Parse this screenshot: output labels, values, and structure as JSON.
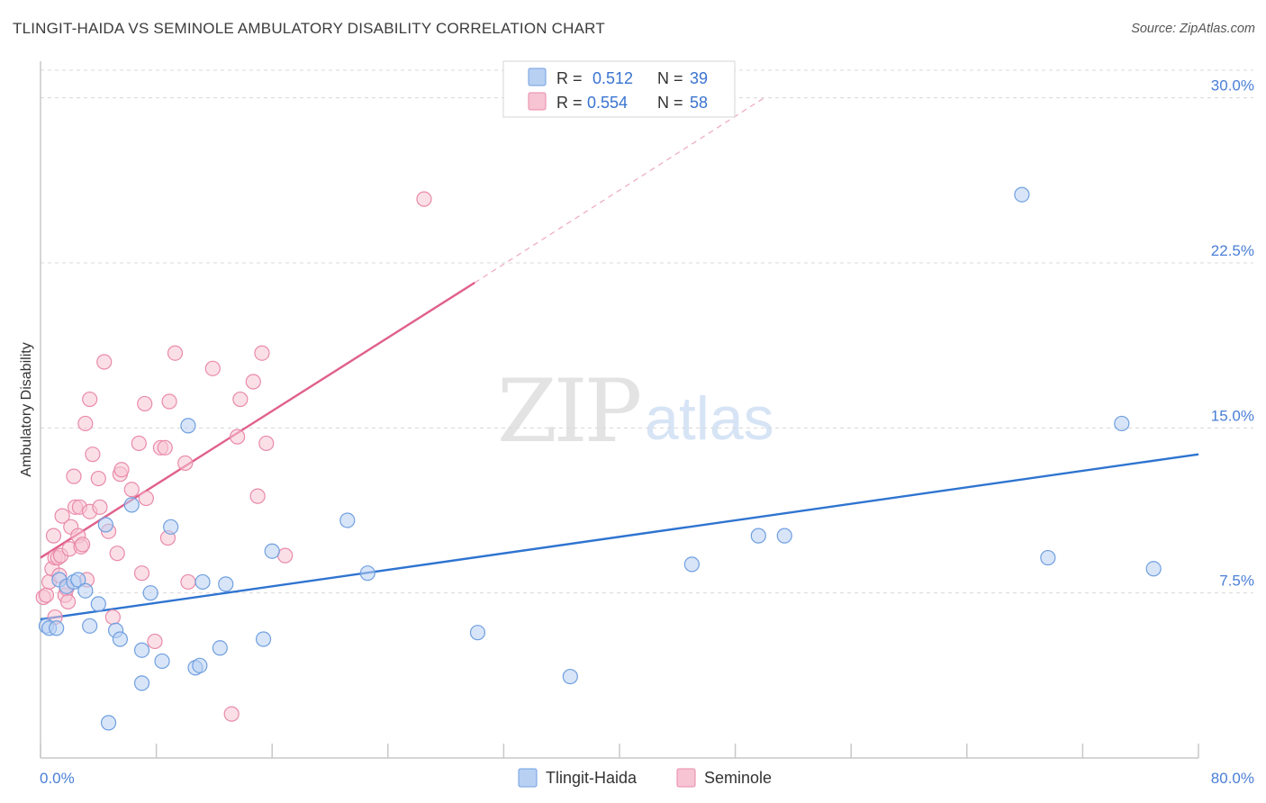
{
  "title": "TLINGIT-HAIDA VS SEMINOLE AMBULATORY DISABILITY CORRELATION CHART",
  "source": "Source: ZipAtlas.com",
  "watermark": {
    "zip": "ZIP",
    "atlas": "atlas"
  },
  "colors": {
    "tlingit_fill": "#b8d0f2",
    "tlingit_stroke": "#6f9fe0",
    "tlingit_line": "#2e74d0",
    "seminole_fill": "#f7c4d4",
    "seminole_stroke": "#e98aaa",
    "seminole_line": "#e0608a",
    "tick_text": "#4a7fd6",
    "grid": "#d8d8d8"
  },
  "legend": {
    "rows": [
      {
        "r_label": "R =",
        "r_value": "0.512",
        "n_label": "N =",
        "n_value": "39"
      },
      {
        "r_label": "R =",
        "r_value": "0.554",
        "n_label": "N =",
        "n_value": "58"
      }
    ]
  },
  "chart_data": {
    "type": "scatter",
    "title": "TLINGIT-HAIDA VS SEMINOLE AMBULATORY DISABILITY CORRELATION CHART",
    "xlabel": "",
    "ylabel": "Ambulatory Disability",
    "xlim": [
      0,
      80
    ],
    "ylim": [
      0,
      31.5
    ],
    "x_tick_labels": [
      "0.0%",
      "80.0%"
    ],
    "y_ticks": [
      7.5,
      15.0,
      22.5,
      30.0
    ],
    "y_tick_labels": [
      "7.5%",
      "15.0%",
      "22.5%",
      "30.0%"
    ],
    "grid": true,
    "legend_position": "top-center",
    "series": [
      {
        "name": "Tlingit-Haida",
        "r": 0.512,
        "n": 39,
        "trend": {
          "x0": 0,
          "y0": 6.3,
          "x1": 80,
          "y1": 13.8,
          "dashed_to": null
        },
        "points": [
          [
            0.4,
            6.0
          ],
          [
            0.6,
            5.9
          ],
          [
            1.1,
            5.9
          ],
          [
            1.3,
            8.1
          ],
          [
            1.8,
            7.8
          ],
          [
            2.3,
            8.0
          ],
          [
            2.6,
            8.1
          ],
          [
            3.1,
            7.6
          ],
          [
            3.4,
            6.0
          ],
          [
            4.0,
            7.0
          ],
          [
            4.5,
            10.6
          ],
          [
            4.7,
            1.6
          ],
          [
            5.2,
            5.8
          ],
          [
            5.5,
            5.4
          ],
          [
            6.3,
            11.5
          ],
          [
            7.0,
            4.9
          ],
          [
            7.0,
            3.4
          ],
          [
            7.6,
            7.5
          ],
          [
            8.4,
            4.4
          ],
          [
            9.0,
            10.5
          ],
          [
            10.2,
            15.1
          ],
          [
            10.7,
            4.1
          ],
          [
            11.0,
            4.2
          ],
          [
            11.2,
            8.0
          ],
          [
            12.4,
            5.0
          ],
          [
            12.8,
            7.9
          ],
          [
            15.4,
            5.4
          ],
          [
            16.0,
            9.4
          ],
          [
            21.2,
            10.8
          ],
          [
            22.6,
            8.4
          ],
          [
            30.2,
            5.7
          ],
          [
            36.6,
            3.7
          ],
          [
            45.0,
            8.8
          ],
          [
            49.6,
            10.1
          ],
          [
            51.4,
            10.1
          ],
          [
            67.8,
            25.6
          ],
          [
            69.6,
            9.1
          ],
          [
            74.7,
            15.2
          ],
          [
            76.9,
            8.6
          ]
        ]
      },
      {
        "name": "Seminole",
        "r": 0.554,
        "n": 58,
        "trend": {
          "x0": 0,
          "y0": 9.1,
          "x1": 30.0,
          "y1": 21.6,
          "dashed_to": {
            "x": 50.0,
            "y": 30.0
          }
        },
        "points": [
          [
            0.2,
            7.3
          ],
          [
            0.4,
            7.4
          ],
          [
            0.6,
            8.0
          ],
          [
            0.8,
            8.6
          ],
          [
            0.9,
            10.1
          ],
          [
            1.0,
            9.1
          ],
          [
            1.2,
            9.1
          ],
          [
            1.3,
            8.3
          ],
          [
            1.4,
            9.2
          ],
          [
            1.5,
            11.0
          ],
          [
            1.7,
            7.4
          ],
          [
            1.8,
            7.7
          ],
          [
            1.9,
            7.1
          ],
          [
            2.0,
            9.5
          ],
          [
            2.1,
            10.5
          ],
          [
            2.3,
            12.8
          ],
          [
            2.4,
            11.4
          ],
          [
            2.6,
            10.1
          ],
          [
            2.7,
            11.4
          ],
          [
            2.8,
            9.6
          ],
          [
            2.9,
            9.7
          ],
          [
            3.1,
            15.2
          ],
          [
            3.2,
            8.1
          ],
          [
            3.4,
            11.2
          ],
          [
            3.4,
            16.3
          ],
          [
            3.6,
            13.8
          ],
          [
            4.0,
            12.7
          ],
          [
            4.1,
            11.4
          ],
          [
            4.4,
            18.0
          ],
          [
            4.7,
            10.3
          ],
          [
            5.0,
            6.4
          ],
          [
            5.3,
            9.3
          ],
          [
            5.5,
            12.9
          ],
          [
            5.6,
            13.1
          ],
          [
            6.3,
            12.2
          ],
          [
            6.8,
            14.3
          ],
          [
            7.0,
            8.4
          ],
          [
            7.2,
            16.1
          ],
          [
            7.3,
            11.8
          ],
          [
            7.9,
            5.3
          ],
          [
            8.3,
            14.1
          ],
          [
            8.6,
            14.1
          ],
          [
            8.8,
            10.0
          ],
          [
            8.9,
            16.2
          ],
          [
            9.3,
            18.4
          ],
          [
            10.0,
            13.4
          ],
          [
            10.2,
            8.0
          ],
          [
            11.9,
            17.7
          ],
          [
            13.2,
            2.0
          ],
          [
            13.6,
            14.6
          ],
          [
            13.8,
            16.3
          ],
          [
            14.7,
            17.1
          ],
          [
            15.0,
            11.9
          ],
          [
            15.3,
            18.4
          ],
          [
            15.6,
            14.3
          ],
          [
            16.9,
            9.2
          ],
          [
            26.5,
            25.4
          ],
          [
            1.0,
            6.4
          ]
        ]
      }
    ]
  },
  "bottom_legend": {
    "items": [
      {
        "label": "Tlingit-Haida"
      },
      {
        "label": "Seminole"
      }
    ]
  }
}
